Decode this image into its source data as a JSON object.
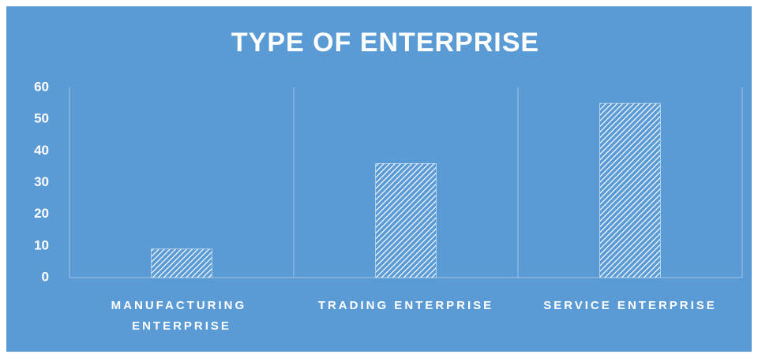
{
  "chart_data": {
    "type": "bar",
    "title": "TYPE OF ENTERPRISE",
    "categories": [
      "MANUFACTURING ENTERPRISE",
      "TRADING ENTERPRISE",
      "SERVICE ENTERPRISE"
    ],
    "values": [
      9,
      36,
      55
    ],
    "color": "#ffffff",
    "background": "#5b9bd5",
    "ylim": [
      0,
      60
    ],
    "yticks": [
      0,
      10,
      20,
      30,
      40,
      50,
      60
    ],
    "grid": true
  }
}
